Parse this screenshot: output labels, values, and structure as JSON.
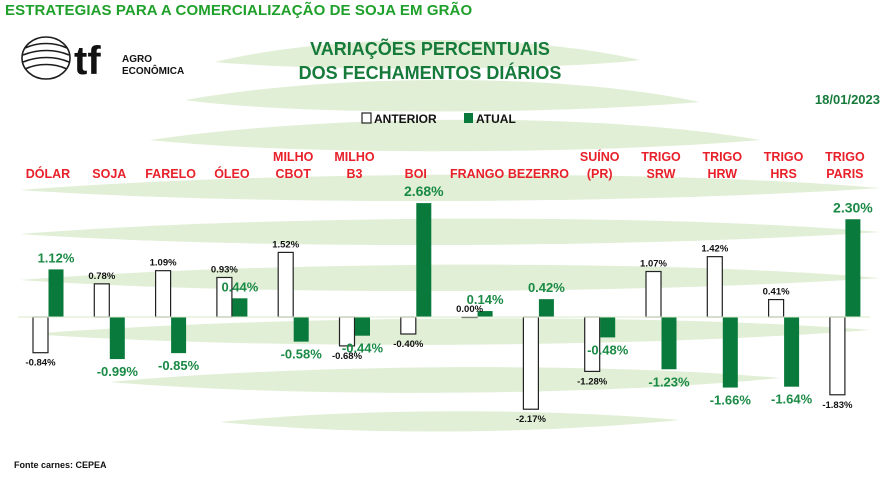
{
  "header": {
    "top_title": "ESTRATEGIAS PARA A COMERCIALIZAÇÃO DE SOJA EM GRÃO",
    "logo_mark": "tf",
    "logo_line1": "AGRO",
    "logo_line2": "ECONÔMICA",
    "title_line1": "VARIAÇÕES PERCENTUAIS",
    "title_line2": "DOS FECHAMENTOS DIÁRIOS",
    "date": "18/01/2023"
  },
  "footer": {
    "source": "Fonte carnes: CEPEA"
  },
  "colors": {
    "green": "#0a7a3c",
    "green_label": "#1a8a45",
    "red": "#e8202a",
    "stripe": "#dfeed3"
  },
  "chart_data": {
    "type": "bar",
    "title": "VARIAÇÕES PERCENTUAIS DOS FECHAMENTOS DIÁRIOS",
    "categories": [
      [
        "DÓLAR"
      ],
      [
        "SOJA"
      ],
      [
        "FARELO"
      ],
      [
        "ÓLEO"
      ],
      [
        "MILHO",
        "CBOT"
      ],
      [
        "MILHO",
        "B3"
      ],
      [
        "BOI"
      ],
      [
        "FRANGO"
      ],
      [
        "BEZERRO"
      ],
      [
        "SUÍNO",
        "(PR)"
      ],
      [
        "TRIGO",
        "SRW"
      ],
      [
        "TRIGO",
        "HRW"
      ],
      [
        "TRIGO",
        "HRS"
      ],
      [
        "TRIGO",
        "PARIS"
      ]
    ],
    "series": [
      {
        "name": "ANTERIOR",
        "values": [
          -0.84,
          0.78,
          1.09,
          0.93,
          1.52,
          -0.68,
          -0.4,
          0.0,
          -2.17,
          -1.28,
          1.07,
          1.42,
          0.41,
          -1.83
        ],
        "labels": [
          "-0.84%",
          "0.78%",
          "1.09%",
          "0.93%",
          "1.52%",
          "-0.68%",
          "-0.40%",
          "0.00%",
          "-2.17%",
          "-1.28%",
          "1.07%",
          "1.42%",
          "0.41%",
          "-1.83%"
        ]
      },
      {
        "name": "ATUAL",
        "values": [
          1.12,
          -0.99,
          -0.85,
          0.44,
          -0.58,
          -0.44,
          2.68,
          0.14,
          0.42,
          -0.48,
          -1.23,
          -1.66,
          -1.64,
          2.3
        ],
        "labels": [
          "1.12%",
          "-0.99%",
          "-0.85%",
          "0.44%",
          "-0.58%",
          "-0.44%",
          "2.68%",
          "0.14%",
          "0.42%",
          "-0.48%",
          "-1.23%",
          "-1.66%",
          "-1.64%",
          "2.30%"
        ]
      }
    ],
    "ylim": [
      -2.17,
      2.68
    ],
    "grid": false,
    "legend": "top-center"
  }
}
